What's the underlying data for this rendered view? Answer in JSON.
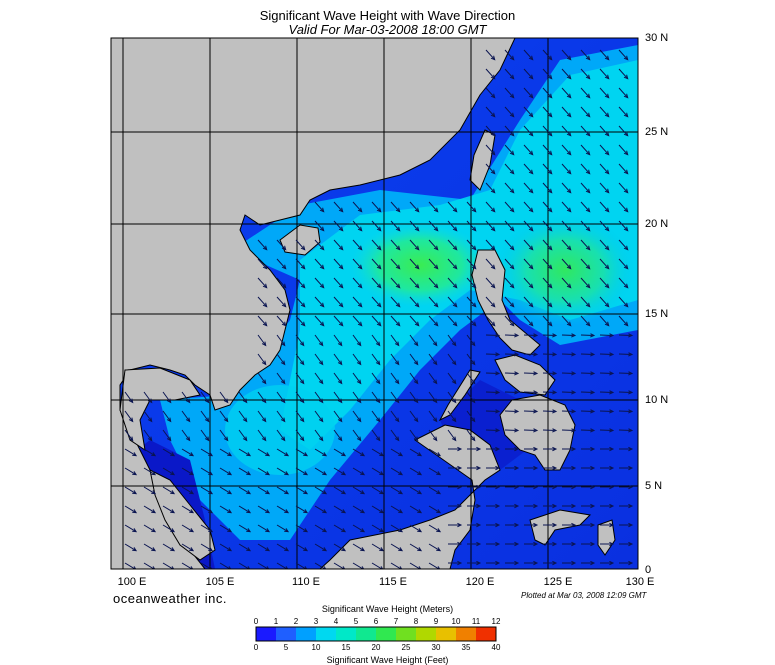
{
  "header": {
    "title": "Significant Wave Height with Wave Direction",
    "subtitle": "Valid For Mar-03-2008 18:00 GMT"
  },
  "map": {
    "lon_labels": [
      "100 E",
      "105 E",
      "110 E",
      "115 E",
      "120 E",
      "125 E",
      "130 E"
    ],
    "lat_labels": [
      "30 N",
      "25 N",
      "20 N",
      "15 N",
      "10 N",
      "5 N",
      "0"
    ],
    "land_color": "#c0c0c0",
    "sea_low_color": "#0a2dd8",
    "sea_high_color": "#2ee65a",
    "arrow_color": "#0a1450"
  },
  "footer": {
    "brand": "oceanweather inc.",
    "plotted": "Plotted at Mar 03, 2008 12:09 GMT"
  },
  "colorbar": {
    "top_label": "Significant Wave Height (Meters)",
    "bottom_label": "Significant Wave Height (Feet)",
    "meter_ticks": [
      "0",
      "1",
      "2",
      "3",
      "4",
      "5",
      "6",
      "7",
      "8",
      "9",
      "10",
      "11",
      "12"
    ],
    "feet_ticks": [
      "0",
      "5",
      "10",
      "15",
      "20",
      "25",
      "30",
      "35",
      "40"
    ],
    "colors": [
      "#1a1aff",
      "#1f5fff",
      "#00a0ff",
      "#00d8f0",
      "#00e8c8",
      "#10e890",
      "#30e850",
      "#70e020",
      "#b0d800",
      "#e8c000",
      "#f08000",
      "#f03000"
    ]
  }
}
